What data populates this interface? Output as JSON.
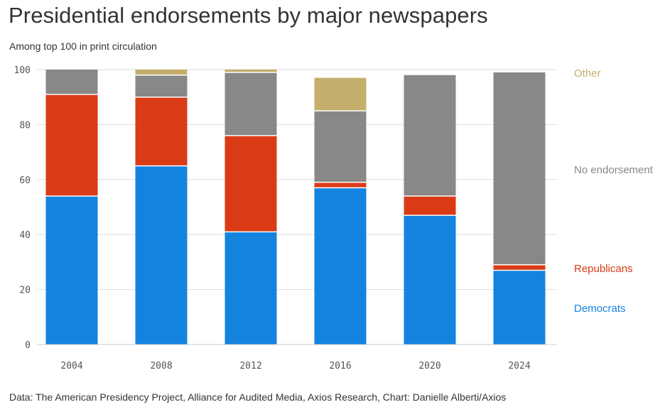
{
  "header": {
    "title": "Presidential endorsements by major newspapers",
    "subtitle": "Among top 100 in print circulation"
  },
  "footer": {
    "source": "Data: The American Presidency Project, Alliance for Audited Media, Axios Research, Chart: Danielle Alberti/Axios"
  },
  "chart_data": {
    "type": "bar",
    "stacked": true,
    "categories": [
      "2004",
      "2008",
      "2012",
      "2016",
      "2020",
      "2024"
    ],
    "series": [
      {
        "name": "Democrats",
        "color": "#1483e0",
        "values": [
          54,
          65,
          41,
          57,
          47,
          27
        ]
      },
      {
        "name": "Republicans",
        "color": "#d93b16",
        "values": [
          37,
          25,
          35,
          2,
          7,
          2
        ]
      },
      {
        "name": "No endorsement",
        "color": "#888888",
        "values": [
          9,
          8,
          23,
          26,
          44,
          70
        ]
      },
      {
        "name": "Other",
        "color": "#c4ae6c",
        "values": [
          0,
          2,
          1,
          12,
          0,
          0
        ]
      }
    ],
    "ylim": [
      0,
      100
    ],
    "yticks": [
      "0",
      "20",
      "40",
      "60",
      "80",
      "100"
    ],
    "xlabel": "",
    "ylabel": "",
    "grid": true,
    "legend_placement": "right"
  }
}
